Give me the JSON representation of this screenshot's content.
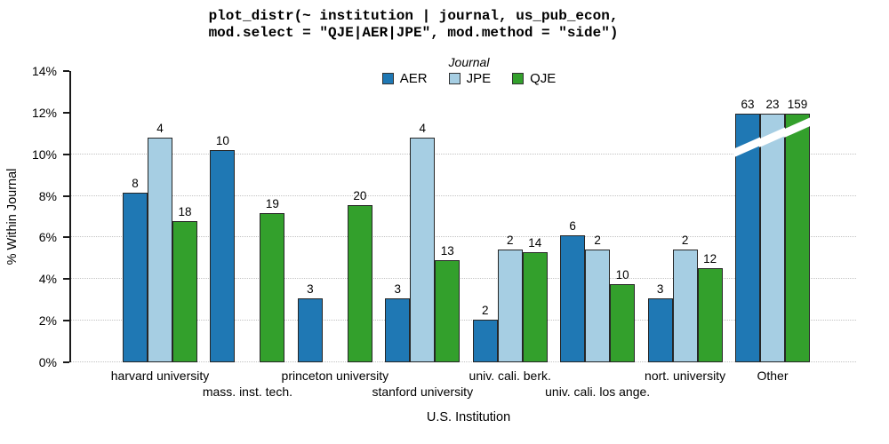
{
  "title": {
    "lines": [
      "plot_distr(~ institution | journal, us_pub_econ,",
      "mod.select = \"QJE|AER|JPE\", mod.method = \"side\")"
    ]
  },
  "legend": {
    "title": "Journal",
    "items": [
      {
        "label": "AER",
        "color": "#1F78B4"
      },
      {
        "label": "JPE",
        "color": "#A6CEE3"
      },
      {
        "label": "QJE",
        "color": "#33A02C"
      }
    ]
  },
  "chart_data": {
    "type": "bar",
    "title": "plot_distr(~ institution | journal, us_pub_econ, mod.select = \"QJE|AER|JPE\", mod.method = \"side\")",
    "xlabel": "U.S. Institution",
    "ylabel": "% Within Journal",
    "ylim": [
      0,
      14
    ],
    "y_ticks": [
      0,
      2,
      4,
      6,
      8,
      10,
      12,
      14
    ],
    "y_tick_labels": [
      "0%",
      "2%",
      "4%",
      "6%",
      "8%",
      "10%",
      "12%",
      "14%"
    ],
    "gridlines_at": [
      0,
      2,
      4,
      6,
      8,
      10
    ],
    "grid_style": "dotted",
    "legend_position": "top",
    "categories": [
      "harvard university",
      "mass. inst. tech.",
      "princeton university",
      "stanford university",
      "univ. cali. berk.",
      "univ. cali. los ange.",
      "nort. university",
      "Other"
    ],
    "category_label_rows": [
      1,
      2,
      1,
      2,
      1,
      2,
      1,
      1
    ],
    "series": [
      {
        "name": "AER",
        "color": "#1F78B4",
        "counts": [
          8,
          10,
          3,
          3,
          2,
          6,
          3,
          63
        ],
        "pct": [
          8.16,
          10.2,
          3.06,
          3.06,
          2.04,
          6.12,
          3.06,
          64.29
        ]
      },
      {
        "name": "JPE",
        "color": "#A6CEE3",
        "counts": [
          4,
          null,
          null,
          4,
          2,
          2,
          2,
          23
        ],
        "pct": [
          10.81,
          null,
          null,
          10.81,
          5.41,
          5.41,
          5.41,
          62.16
        ]
      },
      {
        "name": "QJE",
        "color": "#33A02C",
        "counts": [
          18,
          19,
          20,
          13,
          14,
          10,
          12,
          159
        ],
        "pct": [
          6.79,
          7.17,
          7.55,
          4.91,
          5.28,
          3.77,
          4.53,
          60.0
        ]
      }
    ],
    "truncation": {
      "category": "Other",
      "display_pct": 11.95,
      "marker": "white-diagonal-break"
    }
  }
}
